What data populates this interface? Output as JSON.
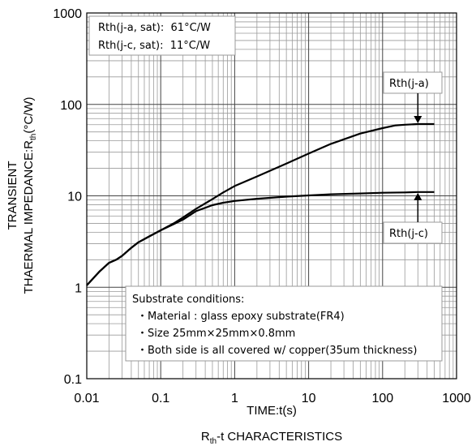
{
  "chart_data": {
    "type": "line",
    "title": "",
    "caption": {
      "main": "R",
      "sub": "th",
      "rest": "-t CHARACTERISTICS"
    },
    "xlabel": "TIME:t(s)",
    "ylabel": {
      "line1": "TRANSIENT",
      "line2_main": "THAERMAL IMPEDANCE:R",
      "line2_sub": "th",
      "line2_rest": "(°C/W)"
    },
    "x_scale": "log",
    "y_scale": "log",
    "xlim": [
      0.01,
      1000
    ],
    "ylim": [
      0.1,
      1000
    ],
    "x_ticks": [
      "0.01",
      "0.1",
      "1",
      "10",
      "100",
      "1000"
    ],
    "y_ticks": [
      "0.1",
      "1",
      "10",
      "100",
      "1000"
    ],
    "grid": true,
    "series": [
      {
        "name": "Rth(j-a)",
        "x": [
          0.01,
          0.015,
          0.02,
          0.025,
          0.03,
          0.04,
          0.05,
          0.07,
          0.1,
          0.15,
          0.2,
          0.3,
          0.5,
          0.7,
          1,
          2,
          5,
          10,
          20,
          50,
          100,
          150,
          200,
          300,
          500
        ],
        "y": [
          1.05,
          1.5,
          1.85,
          2.0,
          2.2,
          2.7,
          3.1,
          3.6,
          4.2,
          5.0,
          5.8,
          7.2,
          9.2,
          10.9,
          12.8,
          16.3,
          22.5,
          29,
          37,
          48,
          55,
          59,
          60,
          61,
          61
        ]
      },
      {
        "name": "Rth(j-c)",
        "x": [
          0.01,
          0.015,
          0.02,
          0.025,
          0.03,
          0.04,
          0.05,
          0.07,
          0.1,
          0.15,
          0.2,
          0.3,
          0.5,
          0.7,
          1,
          2,
          5,
          10,
          20,
          50,
          100,
          200,
          300,
          500
        ],
        "y": [
          1.05,
          1.5,
          1.85,
          2.0,
          2.2,
          2.7,
          3.1,
          3.6,
          4.2,
          4.9,
          5.5,
          6.8,
          7.9,
          8.4,
          8.8,
          9.3,
          9.8,
          10.1,
          10.4,
          10.6,
          10.8,
          10.9,
          11.0,
          11.0
        ]
      }
    ],
    "info_box": [
      "Rth(j-a, sat):  61°C/W",
      "Rth(j-c, sat):  11°C/W"
    ],
    "notes": [
      "Substrate conditions:",
      "・Material : glass epoxy substrate(FR4)",
      "・Size 25mm×25mm×0.8mm",
      "・Both side is all covered w/ copper(35um thickness)"
    ],
    "annotations": [
      {
        "text": "Rth(j-a)",
        "series": 0,
        "x": 300,
        "arrow": "down"
      },
      {
        "text": "Rth(j-c)",
        "series": 1,
        "x": 300,
        "arrow": "up"
      }
    ]
  }
}
